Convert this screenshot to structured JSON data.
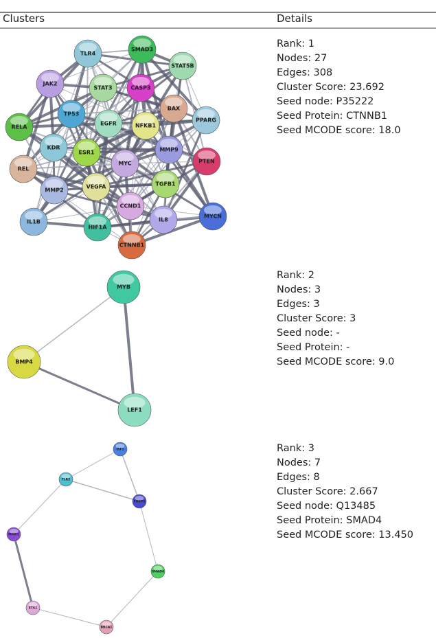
{
  "header": {
    "clusters": "Clusters",
    "details": "Details"
  },
  "rows": [
    {
      "nodes": [
        "TLR4",
        "SMAD3",
        "STAT5B",
        "JAK2",
        "STAT3",
        "CASP3",
        "BAX",
        "TP53",
        "EGFR",
        "NFKB1",
        "PPARG",
        "RELA",
        "KDR",
        "ESR1",
        "MMP9",
        "PTEN",
        "REL",
        "MYC",
        "MMP2",
        "VEGFA",
        "TGFB1",
        "IL1B",
        "HIF1A",
        "CCND1",
        "IL8",
        "MYCN",
        "CTNNB1"
      ],
      "details": [
        "Rank: 1",
        "Nodes: 27",
        "Edges: 308",
        "Cluster Score: 23.692",
        "Seed node: P35222",
        "Seed Protein: CTNNB1",
        "Seed MCODE score: 18.0"
      ]
    },
    {
      "nodes": [
        "MYB",
        "BMP4",
        "LEF1"
      ],
      "details": [
        "Rank: 2",
        "Nodes: 3",
        "Edges: 3",
        "Cluster Score: 3",
        "Seed node: -",
        "Seed Protein: -",
        "Seed MCODE score: 9.0"
      ]
    },
    {
      "nodes": [
        "IRF1",
        "TLR2",
        "FOXP3",
        "MMP1",
        "SMAD4",
        "ETS1",
        "BRCA1"
      ],
      "details": [
        "Rank: 3",
        "Nodes: 7",
        "Edges: 8",
        "Cluster Score: 2.667",
        "Seed node: Q13485",
        "Seed Protein: SMAD4",
        "Seed MCODE score: 13.450"
      ]
    }
  ]
}
